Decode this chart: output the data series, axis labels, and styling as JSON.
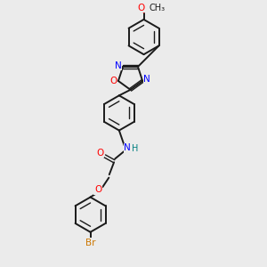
{
  "background_color": "#ebebeb",
  "bond_color": "#1a1a1a",
  "N_color": "#0000ff",
  "O_color": "#ff0000",
  "Br_color": "#cc7700",
  "NH_color": "#008080",
  "figsize": [
    3.0,
    3.0
  ],
  "dpi": 100,
  "xlim": [
    0,
    10
  ],
  "ylim": [
    0,
    13
  ]
}
